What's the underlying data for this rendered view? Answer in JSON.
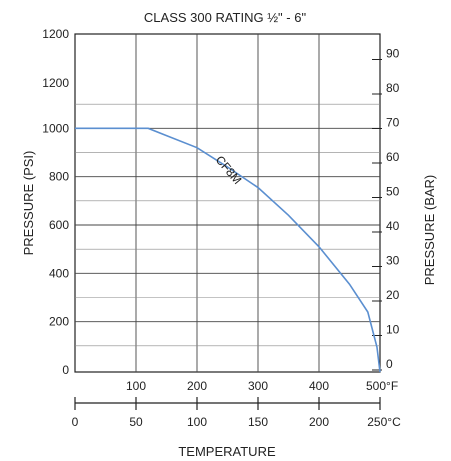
{
  "chart_data": {
    "type": "line",
    "title": "CLASS 300 RATING ½\" - 6\"",
    "ylabel_left": "PRESSURE  (PSI)",
    "ylabel_right": "PRESSURE  (BAR)",
    "xlabel": "TEMPERATURE",
    "x_fahrenheit": {
      "range": [
        0,
        500
      ],
      "ticks": [
        100,
        200,
        300,
        400,
        500
      ],
      "tick_labels": [
        "100",
        "200",
        "300",
        "400",
        "500°F"
      ]
    },
    "x_celsius": {
      "range": [
        0,
        250
      ],
      "ticks": [
        0,
        50,
        100,
        150,
        200,
        250
      ],
      "tick_labels": [
        "0",
        "50",
        "100",
        "150",
        "200",
        "250°C"
      ]
    },
    "y_psi": {
      "range": [
        0,
        1200
      ],
      "ticks": [
        0,
        200,
        400,
        600,
        800,
        1000,
        1200
      ],
      "tick_labels": [
        "0",
        "200",
        "400",
        "600",
        "800",
        "1000",
        "1200"
      ],
      "top_label": "1200"
    },
    "y_bar": {
      "range": [
        0,
        95
      ],
      "ticks": [
        0,
        10,
        20,
        30,
        40,
        50,
        60,
        70,
        80,
        90
      ],
      "tick_labels": [
        "0",
        "10",
        "20",
        "30",
        "40",
        "50",
        "60",
        "70",
        "80",
        "90"
      ]
    },
    "grid": true,
    "series": [
      {
        "name": "CF8M",
        "color": "#5b8fd0",
        "x_unit": "°F",
        "points": [
          [
            0,
            1000
          ],
          [
            120,
            1000
          ],
          [
            150,
            970
          ],
          [
            200,
            920
          ],
          [
            250,
            840
          ],
          [
            300,
            755
          ],
          [
            350,
            640
          ],
          [
            400,
            510
          ],
          [
            450,
            355
          ],
          [
            480,
            240
          ],
          [
            495,
            95
          ],
          [
            500,
            0
          ]
        ]
      }
    ]
  }
}
